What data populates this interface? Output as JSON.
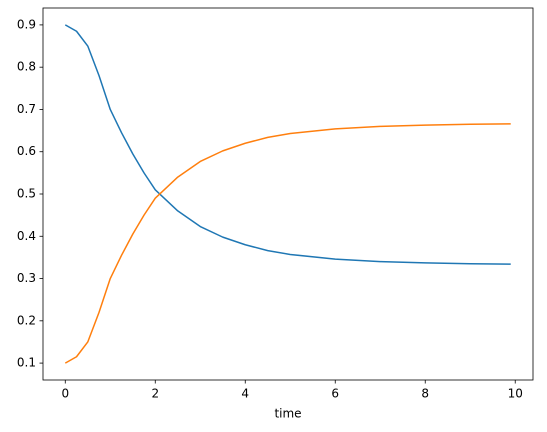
{
  "chart_data": {
    "type": "line",
    "x_label": "time",
    "x": [
      0,
      0.25,
      0.5,
      0.75,
      1,
      1.25,
      1.5,
      1.75,
      2,
      2.5,
      3,
      3.5,
      4,
      4.5,
      5,
      6,
      7,
      8,
      9,
      9.9
    ],
    "series": [
      {
        "color": "#1f77b4",
        "values": [
          0.9,
          0.885,
          0.85,
          0.78,
          0.7,
          0.645,
          0.595,
          0.55,
          0.51,
          0.46,
          0.423,
          0.398,
          0.38,
          0.366,
          0.357,
          0.346,
          0.34,
          0.337,
          0.335,
          0.334
        ]
      },
      {
        "color": "#ff7f0e",
        "values": [
          0.1,
          0.115,
          0.15,
          0.22,
          0.3,
          0.355,
          0.405,
          0.45,
          0.49,
          0.54,
          0.577,
          0.602,
          0.62,
          0.634,
          0.643,
          0.654,
          0.66,
          0.663,
          0.665,
          0.666
        ]
      }
    ],
    "xlim": [
      -0.495,
      10.395
    ],
    "xticks": [
      0,
      2,
      4,
      6,
      8,
      10
    ],
    "ylim": [
      0.06,
      0.94
    ],
    "yticks": [
      0.1,
      0.2,
      0.3,
      0.4,
      0.5,
      0.6,
      0.7,
      0.8,
      0.9
    ],
    "grid": false
  }
}
